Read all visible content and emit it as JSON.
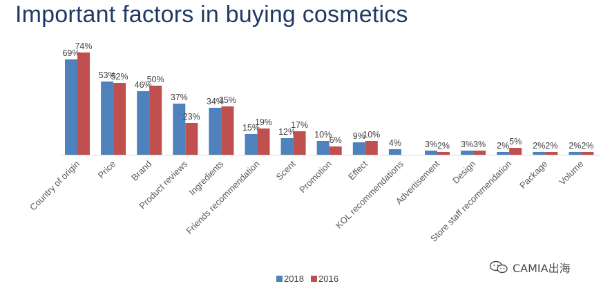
{
  "title": "Important factors in buying cosmetics",
  "watermark": "CAMIA出海",
  "chart_data": {
    "type": "bar",
    "title": "Important factors in buying cosmetics",
    "xlabel": "",
    "ylabel": "",
    "categories": [
      "Country of origin",
      "Price",
      "Brand",
      "Product reviews",
      "Ingredients",
      "Friends recommendation",
      "Scent",
      "Promotion",
      "Effect",
      "KOL recommendations",
      "Advertisement",
      "Design",
      "Store staff recommendation",
      "Package",
      "Volume"
    ],
    "series": [
      {
        "name": "2018",
        "values": [
          69,
          53,
          46,
          37,
          34,
          15,
          12,
          10,
          9,
          4,
          3,
          3,
          2,
          2,
          2
        ],
        "labels": [
          "69%",
          "53%",
          "46%",
          "37%",
          "34%",
          "15%",
          "12%",
          "10%",
          "9%",
          "4%",
          "3%",
          "3%",
          "2%",
          "2%",
          "2%"
        ],
        "color": "#4f81bd"
      },
      {
        "name": "2016",
        "values": [
          74,
          52,
          50,
          23,
          35,
          19,
          17,
          6,
          10,
          null,
          2,
          3,
          5,
          2,
          2
        ],
        "labels": [
          "74%",
          "52%",
          "50%",
          "23%",
          "35%",
          "19%",
          "17%",
          "6%",
          "10%",
          "",
          "2%",
          "3%",
          "5%",
          "2%",
          "2%"
        ],
        "color": "#c0504d"
      }
    ],
    "ylim": [
      0,
      74
    ],
    "grid": false,
    "legend": "bottom"
  }
}
